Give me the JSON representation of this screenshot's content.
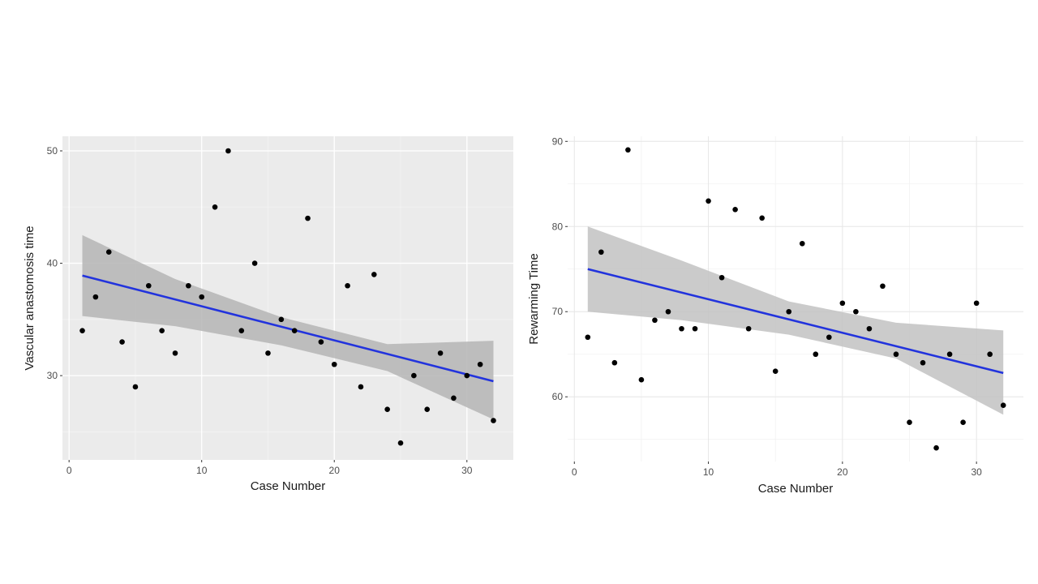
{
  "chart_data": [
    {
      "type": "scatter",
      "theme": "ggplot-gray",
      "xlabel": "Case Number",
      "ylabel": "Vascular anastomosis time",
      "xlim": [
        -0.5,
        33.5
      ],
      "ylim": [
        22.5,
        51.3
      ],
      "x_ticks": [
        0,
        10,
        20,
        30
      ],
      "y_ticks": [
        30,
        40,
        50
      ],
      "grid": true,
      "point_color": "#000000",
      "line_color": "#2233dd",
      "band_color": "#b5b5b5",
      "points": {
        "x": [
          1,
          2,
          3,
          4,
          5,
          6,
          7,
          8,
          9,
          10,
          11,
          12,
          13,
          14,
          15,
          16,
          17,
          18,
          19,
          20,
          21,
          22,
          23,
          24,
          25,
          26,
          27,
          28,
          29,
          30,
          31,
          32
        ],
        "y": [
          34,
          37,
          41,
          33,
          29,
          38,
          34,
          32,
          38,
          37,
          45,
          50,
          34,
          40,
          32,
          35,
          34,
          44,
          33,
          31,
          38,
          29,
          39,
          27,
          24,
          30,
          27,
          32,
          28,
          30,
          31,
          26
        ]
      },
      "trend": {
        "x": [
          1,
          32
        ],
        "y": [
          38.9,
          29.5
        ]
      },
      "confidence_band": {
        "x": [
          1,
          8,
          16,
          24,
          32
        ],
        "lower": [
          35.3,
          34.4,
          32.7,
          30.4,
          26.1
        ],
        "upper": [
          42.5,
          38.6,
          35.2,
          32.8,
          33.1
        ]
      }
    },
    {
      "type": "scatter",
      "theme": "ggplot-minimal",
      "xlabel": "Case Number",
      "ylabel": "Rewarming Time",
      "xlim": [
        -0.5,
        33.5
      ],
      "ylim": [
        52.4,
        90.6
      ],
      "x_ticks": [
        0,
        10,
        20,
        30
      ],
      "y_ticks": [
        60,
        70,
        80,
        90
      ],
      "grid": true,
      "point_color": "#000000",
      "line_color": "#2233dd",
      "band_color": "#c2c2c2",
      "points": {
        "x": [
          1,
          2,
          3,
          4,
          5,
          6,
          7,
          8,
          9,
          10,
          11,
          12,
          13,
          14,
          15,
          16,
          17,
          18,
          19,
          20,
          21,
          22,
          23,
          24,
          25,
          26,
          27,
          28,
          29,
          30,
          31,
          32
        ],
        "y": [
          67,
          77,
          64,
          89,
          62,
          69,
          70,
          68,
          68,
          83,
          74,
          82,
          68,
          81,
          63,
          70,
          78,
          65,
          67,
          71,
          70,
          68,
          73,
          65,
          57,
          64,
          54,
          65,
          57,
          71,
          65,
          59
        ]
      },
      "trend": {
        "x": [
          1,
          32
        ],
        "y": [
          75.0,
          62.8
        ]
      },
      "confidence_band": {
        "x": [
          1,
          8,
          16,
          24,
          32
        ],
        "lower": [
          70.0,
          69.0,
          67.3,
          64.5,
          57.9
        ],
        "upper": [
          80.0,
          76.0,
          71.2,
          68.7,
          67.8
        ]
      }
    }
  ]
}
